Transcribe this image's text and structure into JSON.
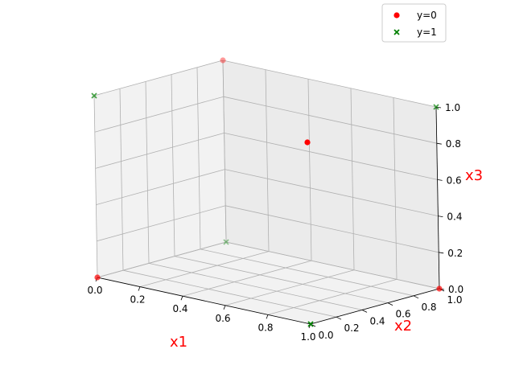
{
  "chart_data": {
    "type": "scatter",
    "projection": "3d",
    "title": "",
    "xlabel": "x1",
    "ylabel": "x2",
    "zlabel": "x3",
    "label_color": "#ff0000",
    "xlim": [
      0,
      1
    ],
    "ylim": [
      0,
      1
    ],
    "zlim": [
      0,
      1
    ],
    "xticks": [
      "0.0",
      "0.2",
      "0.4",
      "0.6",
      "0.8",
      "1.0"
    ],
    "yticks": [
      "0.0",
      "0.2",
      "0.4",
      "0.6",
      "0.8",
      "1.0"
    ],
    "zticks": [
      "0.0",
      "0.2",
      "0.4",
      "0.6",
      "0.8",
      "1.0"
    ],
    "grid": true,
    "legend_position": "top-right",
    "series": [
      {
        "name": "y=0",
        "marker": "circle",
        "color": "#ff0000",
        "points": [
          {
            "x": 0,
            "y": 0,
            "z": 0
          },
          {
            "x": 0,
            "y": 1,
            "z": 1
          },
          {
            "x": 1,
            "y": 1,
            "z": 0
          },
          {
            "x": 1,
            "y": 0,
            "z": 1
          }
        ]
      },
      {
        "name": "y=1",
        "marker": "x",
        "color": "#008000",
        "points": [
          {
            "x": 0,
            "y": 0,
            "z": 1
          },
          {
            "x": 0,
            "y": 1,
            "z": 0
          },
          {
            "x": 1,
            "y": 0,
            "z": 0
          },
          {
            "x": 1,
            "y": 1,
            "z": 1
          }
        ]
      }
    ]
  }
}
